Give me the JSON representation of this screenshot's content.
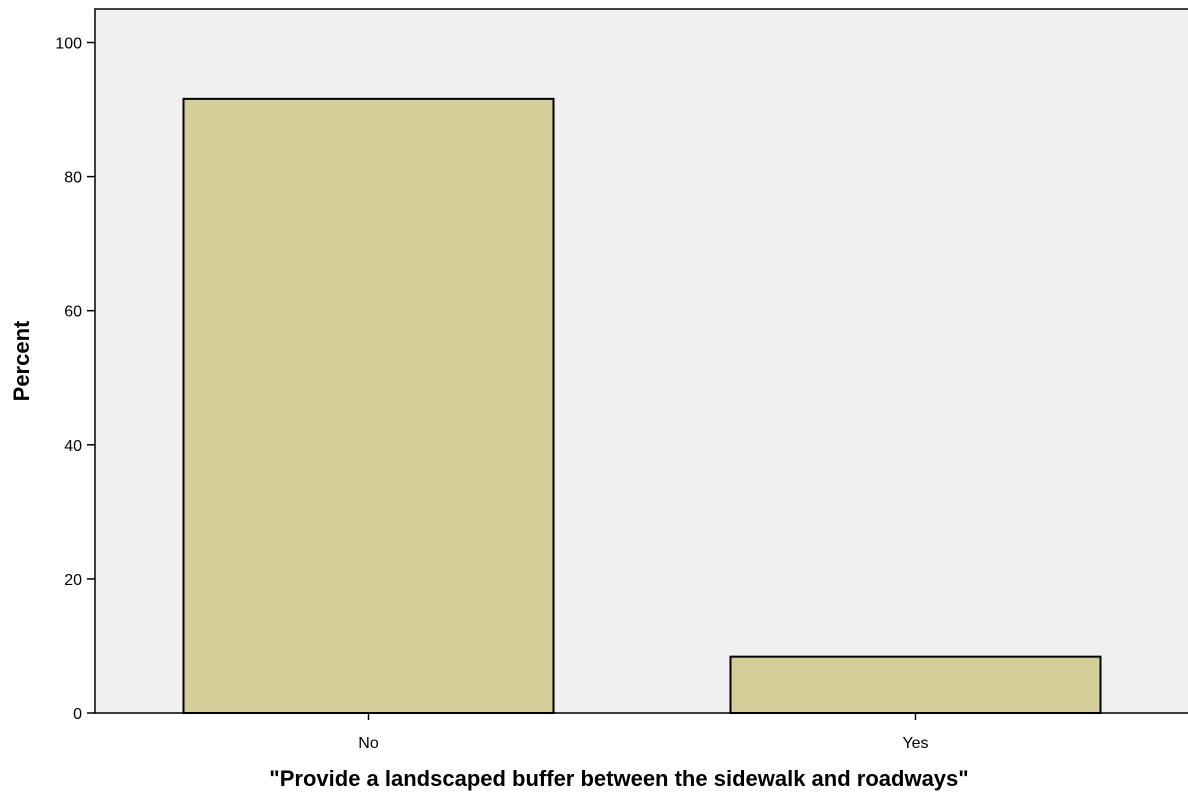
{
  "chart_data": {
    "type": "bar",
    "title": "",
    "xlabel": "\"Provide a landscaped buffer between the sidewalk and roadways\"",
    "ylabel": "Percent",
    "categories": [
      "No",
      "Yes"
    ],
    "values": [
      91.6,
      8.4
    ],
    "ylim": [
      0,
      105
    ],
    "yticks": [
      0,
      20,
      40,
      60,
      80,
      100
    ],
    "grid": false,
    "colors": {
      "plot_background": "#f0f0f0",
      "bar_fill": "#d3ce98",
      "bar_stroke": "#000000"
    }
  }
}
